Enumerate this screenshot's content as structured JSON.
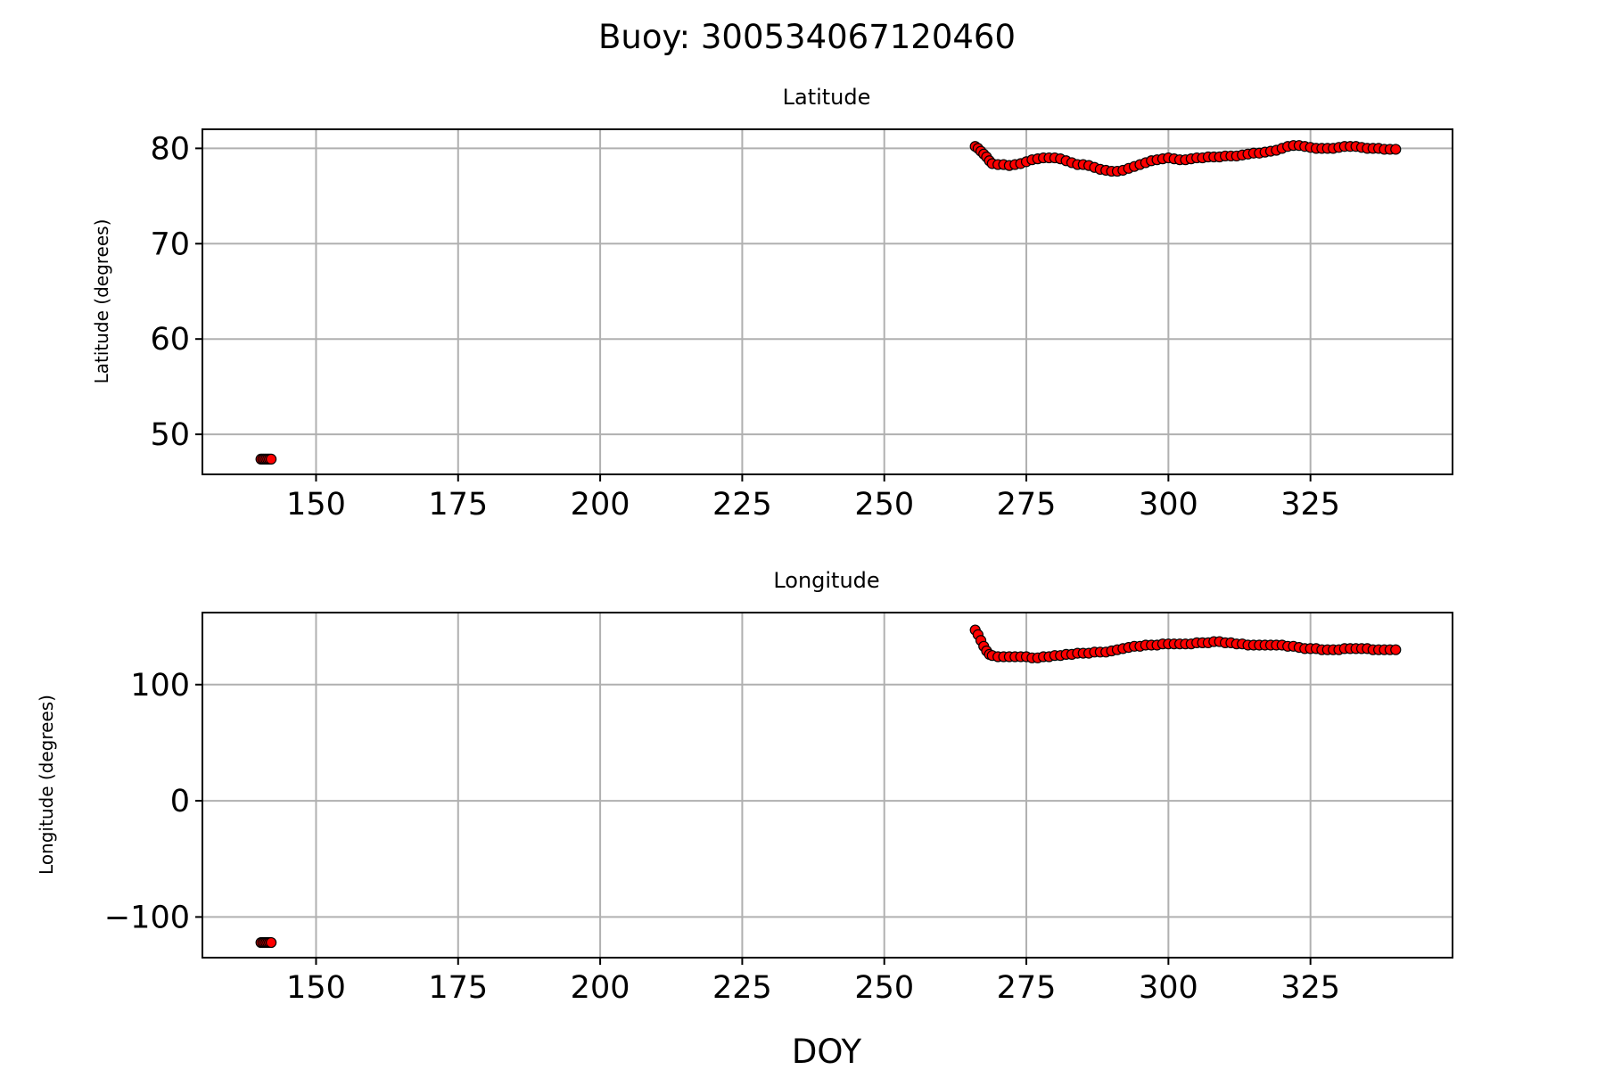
{
  "figure": {
    "suptitle": "Buoy: 300534067120460"
  },
  "chart_data": [
    {
      "type": "scatter",
      "title": "Latitude",
      "xlabel": "",
      "ylabel": "Latitude (degrees)",
      "xlim": [
        130,
        350
      ],
      "ylim": [
        45.8,
        82
      ],
      "xticks": [
        150,
        175,
        200,
        225,
        250,
        275,
        300,
        325
      ],
      "xtick_labels": [
        "150",
        "175",
        "200",
        "225",
        "250",
        "275",
        "300",
        "325"
      ],
      "yticks": [
        50,
        60,
        70,
        80
      ],
      "ytick_labels": [
        "50",
        "60",
        "70",
        "80"
      ],
      "grid": true,
      "marker_color": "#ff0000",
      "marker_edge": "#000000",
      "series": [
        {
          "x": [
            140.3,
            140.6,
            140.9,
            141.2,
            141.5,
            141.8,
            142.1,
            266.0,
            266.5,
            267.0,
            267.5,
            268.0,
            268.5,
            269.0,
            270.0,
            271.0,
            272.0,
            273.0,
            274.0,
            275.0,
            276.0,
            277.0,
            278.0,
            279.0,
            280.0,
            281.0,
            282.0,
            283.0,
            284.0,
            285.0,
            286.0,
            287.0,
            288.0,
            289.0,
            290.0,
            291.0,
            292.0,
            293.0,
            294.0,
            295.0,
            296.0,
            297.0,
            298.0,
            299.0,
            300.0,
            301.0,
            302.0,
            303.0,
            304.0,
            305.0,
            306.0,
            307.0,
            308.0,
            309.0,
            310.0,
            311.0,
            312.0,
            313.0,
            314.0,
            315.0,
            316.0,
            317.0,
            318.0,
            319.0,
            320.0,
            321.0,
            322.0,
            323.0,
            324.0,
            325.0,
            326.0,
            327.0,
            328.0,
            329.0,
            330.0,
            331.0,
            332.0,
            333.0,
            334.0,
            335.0,
            336.0,
            337.0,
            338.0,
            339.0,
            340.0
          ],
          "y": [
            47.4,
            47.4,
            47.4,
            47.4,
            47.4,
            47.4,
            47.4,
            80.2,
            80.0,
            79.7,
            79.4,
            79.1,
            78.7,
            78.4,
            78.3,
            78.3,
            78.2,
            78.3,
            78.4,
            78.6,
            78.8,
            78.9,
            79.0,
            79.0,
            79.0,
            78.9,
            78.7,
            78.5,
            78.3,
            78.3,
            78.2,
            78.0,
            77.8,
            77.7,
            77.6,
            77.6,
            77.7,
            77.9,
            78.1,
            78.3,
            78.5,
            78.7,
            78.8,
            78.9,
            79.0,
            78.9,
            78.8,
            78.8,
            78.9,
            79.0,
            79.0,
            79.1,
            79.1,
            79.1,
            79.2,
            79.2,
            79.2,
            79.3,
            79.4,
            79.5,
            79.5,
            79.6,
            79.7,
            79.8,
            80.0,
            80.2,
            80.3,
            80.3,
            80.2,
            80.1,
            80.0,
            80.0,
            80.0,
            80.0,
            80.1,
            80.2,
            80.2,
            80.2,
            80.1,
            80.0,
            80.0,
            80.0,
            79.9,
            79.9,
            79.9
          ]
        }
      ]
    },
    {
      "type": "scatter",
      "title": "Longitude",
      "xlabel": "DOY",
      "ylabel": "Longitude (degrees)",
      "xlim": [
        130,
        350
      ],
      "ylim": [
        -135,
        162
      ],
      "xticks": [
        150,
        175,
        200,
        225,
        250,
        275,
        300,
        325
      ],
      "xtick_labels": [
        "150",
        "175",
        "200",
        "225",
        "250",
        "275",
        "300",
        "325"
      ],
      "yticks": [
        -100,
        0,
        100
      ],
      "ytick_labels": [
        "−100",
        "0",
        "100"
      ],
      "grid": true,
      "marker_color": "#ff0000",
      "marker_edge": "#000000",
      "series": [
        {
          "x": [
            140.3,
            140.6,
            140.9,
            141.2,
            141.5,
            141.8,
            142.1,
            266.0,
            266.5,
            267.0,
            267.5,
            268.0,
            268.5,
            269.0,
            270.0,
            271.0,
            272.0,
            273.0,
            274.0,
            275.0,
            276.0,
            277.0,
            278.0,
            279.0,
            280.0,
            281.0,
            282.0,
            283.0,
            284.0,
            285.0,
            286.0,
            287.0,
            288.0,
            289.0,
            290.0,
            291.0,
            292.0,
            293.0,
            294.0,
            295.0,
            296.0,
            297.0,
            298.0,
            299.0,
            300.0,
            301.0,
            302.0,
            303.0,
            304.0,
            305.0,
            306.0,
            307.0,
            308.0,
            309.0,
            310.0,
            311.0,
            312.0,
            313.0,
            314.0,
            315.0,
            316.0,
            317.0,
            318.0,
            319.0,
            320.0,
            321.0,
            322.0,
            323.0,
            324.0,
            325.0,
            326.0,
            327.0,
            328.0,
            329.0,
            330.0,
            331.0,
            332.0,
            333.0,
            334.0,
            335.0,
            336.0,
            337.0,
            338.0,
            339.0,
            340.0
          ],
          "y": [
            -122,
            -122,
            -122,
            -122,
            -122,
            -122,
            -122,
            147,
            143,
            138,
            133,
            129,
            126,
            125,
            124,
            124,
            124,
            124,
            124,
            124,
            123,
            123,
            124,
            124,
            125,
            125,
            126,
            126,
            127,
            127,
            127,
            128,
            128,
            128,
            129,
            130,
            131,
            132,
            133,
            133,
            134,
            134,
            134,
            135,
            135,
            135,
            135,
            135,
            135,
            136,
            136,
            136,
            137,
            137,
            136,
            136,
            135,
            135,
            134,
            134,
            134,
            134,
            134,
            134,
            134,
            133,
            133,
            132,
            131,
            131,
            131,
            130,
            130,
            130,
            130,
            131,
            131,
            131,
            131,
            131,
            130,
            130,
            130,
            130,
            130
          ]
        }
      ]
    }
  ]
}
